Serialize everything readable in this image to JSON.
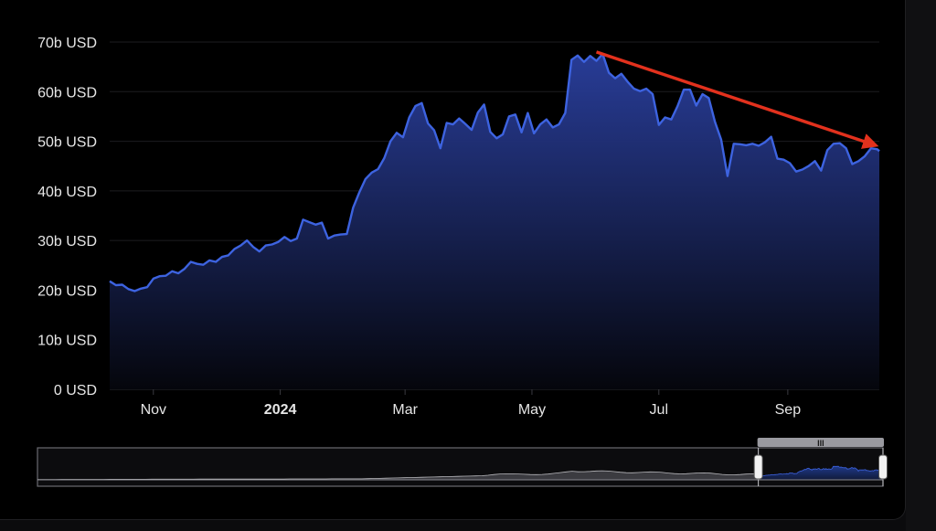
{
  "chart_data": {
    "type": "area",
    "title": "",
    "xlabel": "",
    "ylabel": "",
    "y_unit": "USD",
    "ylim": [
      0,
      70
    ],
    "y_ticks": [
      {
        "value": 0,
        "label": "0 USD"
      },
      {
        "value": 10,
        "label": "10b USD"
      },
      {
        "value": 20,
        "label": "20b USD"
      },
      {
        "value": 30,
        "label": "30b USD"
      },
      {
        "value": 40,
        "label": "40b USD"
      },
      {
        "value": 50,
        "label": "50b USD"
      },
      {
        "value": 60,
        "label": "60b USD"
      },
      {
        "value": 70,
        "label": "70b USD"
      }
    ],
    "x_range": [
      "2023-10-11",
      "2024-10-15"
    ],
    "x_ticks": [
      {
        "date": "2023-11-01",
        "label": "Nov",
        "bold": false
      },
      {
        "date": "2024-01-01",
        "label": "2024",
        "bold": true
      },
      {
        "date": "2024-03-01",
        "label": "Mar",
        "bold": false
      },
      {
        "date": "2024-05-01",
        "label": "May",
        "bold": false
      },
      {
        "date": "2024-07-01",
        "label": "Jul",
        "bold": false
      },
      {
        "date": "2024-09-01",
        "label": "Sep",
        "bold": false
      }
    ],
    "grid": true,
    "legend": "none",
    "colors": {
      "line": "#3d63e0",
      "fill_top": "#2a3f9e",
      "fill_bottom": "#05060c",
      "annotation": "#e2311d"
    },
    "series": [
      {
        "points": [
          [
            "2023-10-11",
            21.8
          ],
          [
            "2023-10-14",
            21.0
          ],
          [
            "2023-10-17",
            21.1
          ],
          [
            "2023-10-20",
            20.2
          ],
          [
            "2023-10-23",
            19.8
          ],
          [
            "2023-10-26",
            20.3
          ],
          [
            "2023-10-29",
            20.6
          ],
          [
            "2023-11-01",
            22.3
          ],
          [
            "2023-11-04",
            22.8
          ],
          [
            "2023-11-07",
            22.9
          ],
          [
            "2023-11-10",
            23.8
          ],
          [
            "2023-11-13",
            23.4
          ],
          [
            "2023-11-16",
            24.3
          ],
          [
            "2023-11-19",
            25.7
          ],
          [
            "2023-11-22",
            25.3
          ],
          [
            "2023-11-25",
            25.1
          ],
          [
            "2023-11-28",
            26.0
          ],
          [
            "2023-12-01",
            25.7
          ],
          [
            "2023-12-04",
            26.7
          ],
          [
            "2023-12-07",
            27.0
          ],
          [
            "2023-12-10",
            28.3
          ],
          [
            "2023-12-13",
            29.0
          ],
          [
            "2023-12-16",
            30.0
          ],
          [
            "2023-12-19",
            28.7
          ],
          [
            "2023-12-22",
            27.8
          ],
          [
            "2023-12-25",
            29.0
          ],
          [
            "2023-12-28",
            29.2
          ],
          [
            "2023-12-31",
            29.7
          ],
          [
            "2024-01-03",
            30.7
          ],
          [
            "2024-01-06",
            29.9
          ],
          [
            "2024-01-09",
            30.4
          ],
          [
            "2024-01-12",
            34.2
          ],
          [
            "2024-01-15",
            33.7
          ],
          [
            "2024-01-18",
            33.2
          ],
          [
            "2024-01-21",
            33.6
          ],
          [
            "2024-01-24",
            30.4
          ],
          [
            "2024-01-27",
            31.0
          ],
          [
            "2024-01-30",
            31.2
          ],
          [
            "2024-02-02",
            31.3
          ],
          [
            "2024-02-05",
            36.6
          ],
          [
            "2024-02-08",
            39.7
          ],
          [
            "2024-02-11",
            42.4
          ],
          [
            "2024-02-14",
            43.7
          ],
          [
            "2024-02-17",
            44.4
          ],
          [
            "2024-02-20",
            46.6
          ],
          [
            "2024-02-23",
            50.0
          ],
          [
            "2024-02-26",
            51.7
          ],
          [
            "2024-02-29",
            50.8
          ],
          [
            "2024-03-03",
            54.8
          ],
          [
            "2024-03-06",
            57.1
          ],
          [
            "2024-03-09",
            57.7
          ],
          [
            "2024-03-12",
            53.6
          ],
          [
            "2024-03-15",
            52.2
          ],
          [
            "2024-03-18",
            48.6
          ],
          [
            "2024-03-21",
            53.7
          ],
          [
            "2024-03-24",
            53.4
          ],
          [
            "2024-03-27",
            54.6
          ],
          [
            "2024-03-30",
            53.5
          ],
          [
            "2024-04-02",
            52.3
          ],
          [
            "2024-04-05",
            55.8
          ],
          [
            "2024-04-08",
            57.4
          ],
          [
            "2024-04-11",
            51.9
          ],
          [
            "2024-04-14",
            50.6
          ],
          [
            "2024-04-17",
            51.4
          ],
          [
            "2024-04-20",
            55.0
          ],
          [
            "2024-04-23",
            55.4
          ],
          [
            "2024-04-26",
            51.8
          ],
          [
            "2024-04-29",
            55.7
          ],
          [
            "2024-05-02",
            51.6
          ],
          [
            "2024-05-05",
            53.4
          ],
          [
            "2024-05-08",
            54.4
          ],
          [
            "2024-05-11",
            52.8
          ],
          [
            "2024-05-14",
            53.4
          ],
          [
            "2024-05-17",
            55.7
          ],
          [
            "2024-05-20",
            66.4
          ],
          [
            "2024-05-23",
            67.3
          ],
          [
            "2024-05-26",
            66.0
          ],
          [
            "2024-05-29",
            67.2
          ],
          [
            "2024-06-01",
            66.2
          ],
          [
            "2024-06-04",
            67.6
          ],
          [
            "2024-06-07",
            63.8
          ],
          [
            "2024-06-10",
            62.7
          ],
          [
            "2024-06-13",
            63.6
          ],
          [
            "2024-06-16",
            62.0
          ],
          [
            "2024-06-19",
            60.6
          ],
          [
            "2024-06-22",
            60.1
          ],
          [
            "2024-06-25",
            60.6
          ],
          [
            "2024-06-28",
            59.5
          ],
          [
            "2024-07-01",
            53.3
          ],
          [
            "2024-07-04",
            54.8
          ],
          [
            "2024-07-07",
            54.4
          ],
          [
            "2024-07-10",
            57.1
          ],
          [
            "2024-07-13",
            60.4
          ],
          [
            "2024-07-16",
            60.4
          ],
          [
            "2024-07-19",
            57.2
          ],
          [
            "2024-07-22",
            59.5
          ],
          [
            "2024-07-25",
            58.7
          ],
          [
            "2024-07-28",
            53.9
          ],
          [
            "2024-07-31",
            50.3
          ],
          [
            "2024-08-03",
            43.0
          ],
          [
            "2024-08-06",
            49.5
          ],
          [
            "2024-08-09",
            49.4
          ],
          [
            "2024-08-12",
            49.2
          ],
          [
            "2024-08-15",
            49.5
          ],
          [
            "2024-08-18",
            49.1
          ],
          [
            "2024-08-21",
            49.8
          ],
          [
            "2024-08-24",
            50.9
          ],
          [
            "2024-08-27",
            46.5
          ],
          [
            "2024-08-30",
            46.3
          ],
          [
            "2024-09-02",
            45.6
          ],
          [
            "2024-09-05",
            43.9
          ],
          [
            "2024-09-08",
            44.3
          ],
          [
            "2024-09-11",
            45.0
          ],
          [
            "2024-09-14",
            46.0
          ],
          [
            "2024-09-17",
            44.1
          ],
          [
            "2024-09-20",
            48.2
          ],
          [
            "2024-09-23",
            49.5
          ],
          [
            "2024-09-26",
            49.6
          ],
          [
            "2024-09-29",
            48.6
          ],
          [
            "2024-10-02",
            45.4
          ],
          [
            "2024-10-05",
            46.0
          ],
          [
            "2024-10-08",
            47.0
          ],
          [
            "2024-10-11",
            48.6
          ],
          [
            "2024-10-14",
            48.4
          ],
          [
            "2024-10-15",
            48.0
          ]
        ]
      }
    ],
    "annotation": {
      "type": "arrow",
      "from": [
        "2024-06-01",
        68.0
      ],
      "to": [
        "2024-10-15",
        49.0
      ]
    },
    "navigator": {
      "full_range": [
        "2017-12-01",
        "2024-10-15"
      ],
      "selected_range": [
        "2023-10-11",
        "2024-10-15"
      ],
      "handle_label": "III"
    }
  }
}
